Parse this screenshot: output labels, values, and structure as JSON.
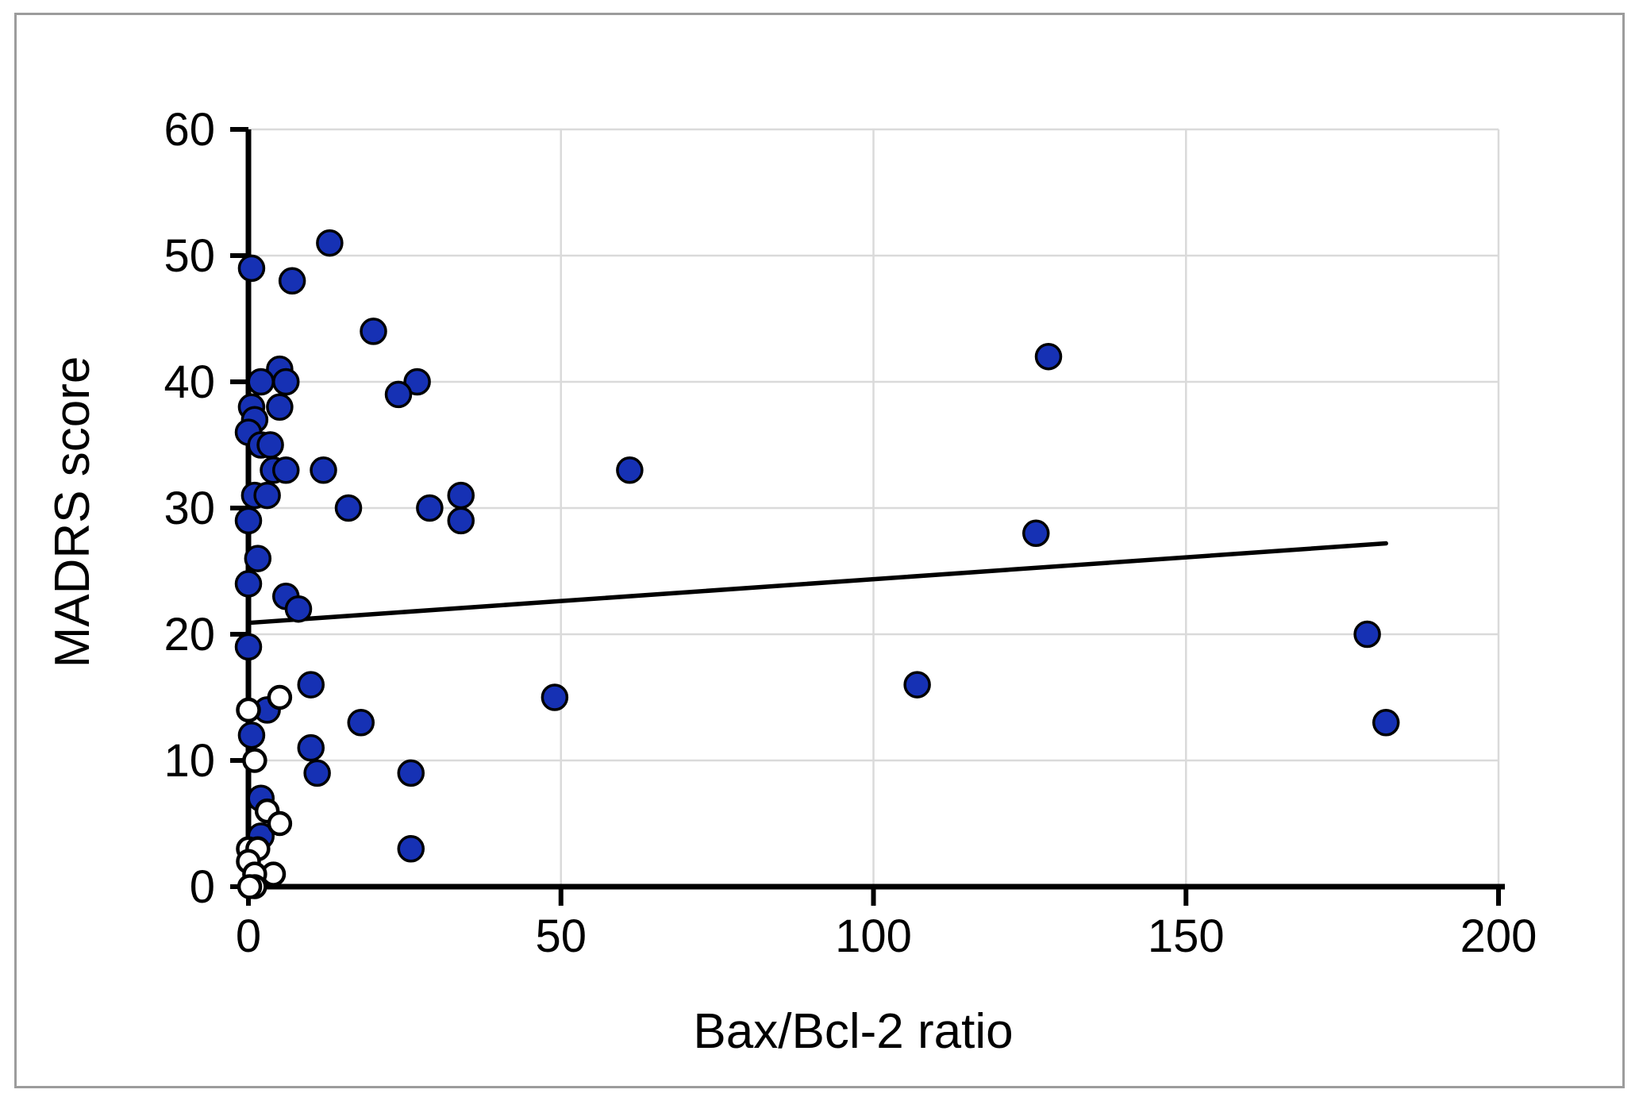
{
  "chart_data": {
    "type": "scatter",
    "title": "",
    "xlabel": "Bax/Bcl-2 ratio",
    "ylabel": "MADRS score",
    "xlim": [
      0,
      200
    ],
    "ylim": [
      0,
      60
    ],
    "x_ticks": [
      0,
      50,
      100,
      150,
      200
    ],
    "y_ticks": [
      0,
      10,
      20,
      30,
      40,
      50,
      60
    ],
    "grid": "on",
    "legend_position": "none",
    "series": [
      {
        "name": "filled-blue-circles",
        "marker": "filled-circle",
        "fill": "#1631b4",
        "stroke": "#000000",
        "points": [
          [
            13,
            51
          ],
          [
            0.5,
            49
          ],
          [
            7,
            48
          ],
          [
            20,
            44
          ],
          [
            128,
            42
          ],
          [
            5,
            41
          ],
          [
            2,
            40
          ],
          [
            6,
            40
          ],
          [
            27,
            40
          ],
          [
            24,
            39
          ],
          [
            0.5,
            38
          ],
          [
            5,
            38
          ],
          [
            1,
            37
          ],
          [
            0,
            36
          ],
          [
            2,
            35
          ],
          [
            3.5,
            35
          ],
          [
            4,
            33
          ],
          [
            6,
            33
          ],
          [
            12,
            33
          ],
          [
            61,
            33
          ],
          [
            1,
            31
          ],
          [
            3,
            31
          ],
          [
            34,
            31
          ],
          [
            16,
            30
          ],
          [
            29,
            30
          ],
          [
            0,
            29
          ],
          [
            34,
            29
          ],
          [
            126,
            28
          ],
          [
            1.5,
            26
          ],
          [
            0,
            24
          ],
          [
            6,
            23
          ],
          [
            8,
            22
          ],
          [
            179,
            20
          ],
          [
            0,
            19
          ],
          [
            10,
            16
          ],
          [
            107,
            16
          ],
          [
            49,
            15
          ],
          [
            3,
            14
          ],
          [
            18,
            13
          ],
          [
            182,
            13
          ],
          [
            0.5,
            12
          ],
          [
            10,
            11
          ],
          [
            11,
            9
          ],
          [
            26,
            9
          ],
          [
            2,
            7
          ],
          [
            2,
            4
          ],
          [
            26,
            3
          ]
        ]
      },
      {
        "name": "open-white-circles",
        "marker": "open-circle",
        "fill": "#ffffff",
        "stroke": "#000000",
        "points": [
          [
            5,
            15
          ],
          [
            0,
            14
          ],
          [
            1,
            10
          ],
          [
            3,
            6
          ],
          [
            5,
            5
          ],
          [
            0,
            3
          ],
          [
            1.5,
            3
          ],
          [
            0,
            2
          ],
          [
            4,
            1
          ],
          [
            1,
            1
          ],
          [
            1,
            0
          ],
          [
            0.2,
            0
          ]
        ]
      }
    ],
    "trendline": {
      "x1": 0,
      "y1": 20.9,
      "x2": 182,
      "y2": 27.2
    }
  },
  "style": {
    "point_blue": "#1631b4",
    "grid_color": "#dadada",
    "axis_color": "#000000",
    "trend_color": "#000000",
    "figure_border_color": "#9c9c9c",
    "background": "#ffffff"
  }
}
